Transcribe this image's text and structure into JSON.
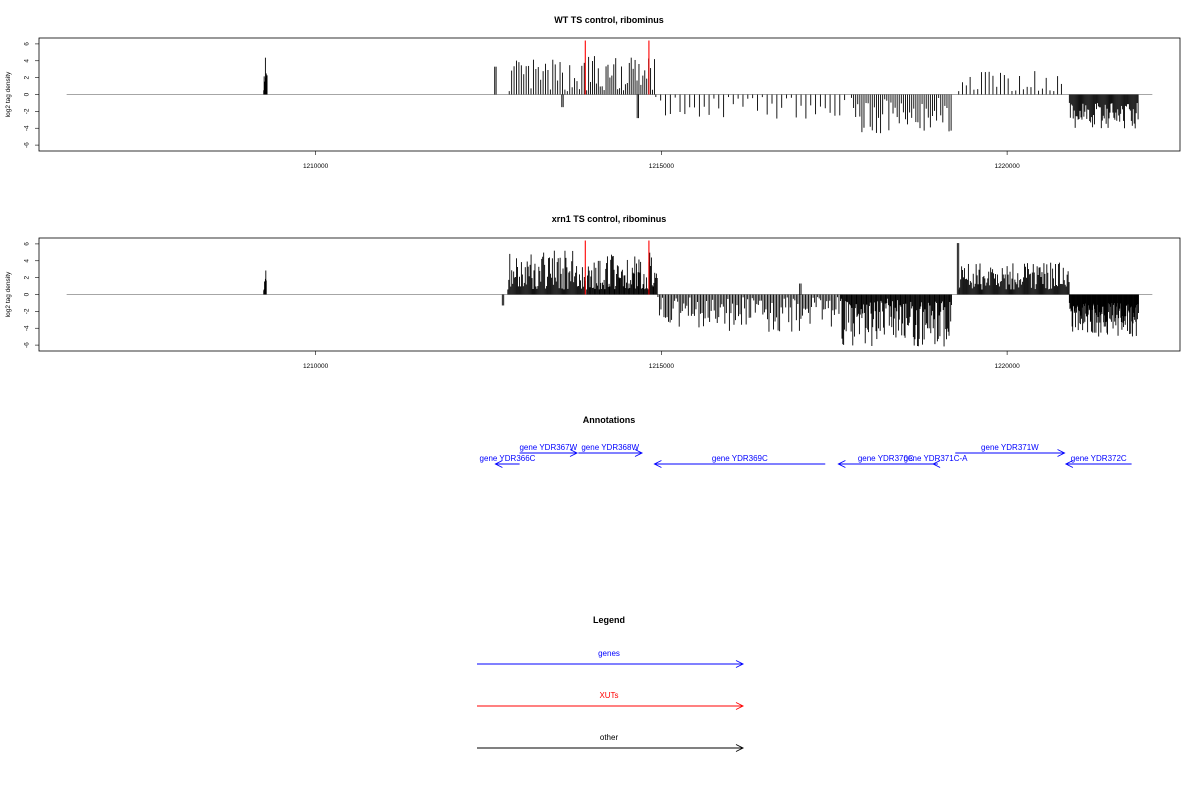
{
  "chart_data": [
    {
      "type": "bar",
      "title": "WT TS control, ribominus",
      "xlabel": "",
      "ylabel": "log2 tag density",
      "xlim": [
        1206000,
        1222500
      ],
      "ylim": [
        -6.7,
        6.7
      ],
      "x_ticks": [
        1210000,
        1215000,
        1220000
      ],
      "x_tick_labels": [
        "1210000",
        "1215000",
        "1220000"
      ],
      "y_ticks": [
        -6,
        -4,
        -2,
        0,
        2,
        4,
        6
      ],
      "baseline_range": [
        1206400,
        1222100
      ],
      "highlight_x": [
        1213900,
        1214820
      ],
      "highlight_color": "#ff0000",
      "bar_color": "#000000",
      "series": [
        {
          "start": 1209250,
          "end": 1209300,
          "step": 6,
          "sign": 1,
          "min": 0.5,
          "max": 5.2,
          "seed": 11
        },
        {
          "start": 1212590,
          "end": 1212610,
          "step": 20,
          "sign": 1,
          "min": 3.3,
          "max": 3.3,
          "seed": 12
        },
        {
          "start": 1212800,
          "end": 1213900,
          "step": 35,
          "sign": 1,
          "min": 0.4,
          "max": 4.2,
          "seed": 13
        },
        {
          "start": 1213560,
          "end": 1213580,
          "step": 20,
          "sign": -1,
          "min": 1.5,
          "max": 1.5,
          "seed": 14
        },
        {
          "start": 1213920,
          "end": 1214900,
          "step": 28,
          "sign": 1,
          "min": 0.5,
          "max": 4.6,
          "seed": 15
        },
        {
          "start": 1214650,
          "end": 1214670,
          "step": 20,
          "sign": -1,
          "min": 2.8,
          "max": 2.8,
          "seed": 16
        },
        {
          "start": 1214920,
          "end": 1217700,
          "step": 70,
          "sign": -1,
          "min": 0.3,
          "max": 3.0,
          "seed": 17
        },
        {
          "start": 1217750,
          "end": 1219200,
          "step": 30,
          "sign": -1,
          "min": 0.4,
          "max": 4.8,
          "seed": 18
        },
        {
          "start": 1219300,
          "end": 1220800,
          "step": 55,
          "sign": 1,
          "min": 0.4,
          "max": 3.0,
          "seed": 19
        },
        {
          "start": 1220900,
          "end": 1221900,
          "step": 14,
          "sign": -1,
          "min": 1.0,
          "max": 4.2,
          "seed": 20
        }
      ]
    },
    {
      "type": "bar",
      "title": "xrn1 TS control, ribominus",
      "xlabel": "",
      "ylabel": "log2 tag density",
      "xlim": [
        1206000,
        1222500
      ],
      "ylim": [
        -6.7,
        6.7
      ],
      "x_ticks": [
        1210000,
        1215000,
        1220000
      ],
      "x_tick_labels": [
        "1210000",
        "1215000",
        "1220000"
      ],
      "y_ticks": [
        -6,
        -4,
        -2,
        0,
        2,
        4,
        6
      ],
      "baseline_range": [
        1206400,
        1222100
      ],
      "highlight_x": [
        1213900,
        1214820
      ],
      "highlight_color": "#ff0000",
      "bar_color": "#000000",
      "series": [
        {
          "start": 1209250,
          "end": 1209290,
          "step": 6,
          "sign": 1,
          "min": 0.5,
          "max": 3.7,
          "seed": 31
        },
        {
          "start": 1212700,
          "end": 1212720,
          "step": 20,
          "sign": -1,
          "min": 1.3,
          "max": 1.3,
          "seed": 32
        },
        {
          "start": 1212780,
          "end": 1213900,
          "step": 14,
          "sign": 1,
          "min": 0.6,
          "max": 5.2,
          "seed": 33
        },
        {
          "start": 1213920,
          "end": 1214950,
          "step": 12,
          "sign": 1,
          "min": 0.6,
          "max": 5.0,
          "seed": 34
        },
        {
          "start": 1214950,
          "end": 1217600,
          "step": 22,
          "sign": -1,
          "min": 0.3,
          "max": 4.5,
          "seed": 35
        },
        {
          "start": 1217000,
          "end": 1217020,
          "step": 20,
          "sign": 1,
          "min": 1.3,
          "max": 1.3,
          "seed": 36
        },
        {
          "start": 1217600,
          "end": 1219200,
          "step": 12,
          "sign": -1,
          "min": 0.5,
          "max": 6.2,
          "seed": 37
        },
        {
          "start": 1219280,
          "end": 1219300,
          "step": 20,
          "sign": 1,
          "min": 6.1,
          "max": 6.1,
          "seed": 38
        },
        {
          "start": 1219300,
          "end": 1220900,
          "step": 14,
          "sign": 1,
          "min": 0.6,
          "max": 3.8,
          "seed": 39
        },
        {
          "start": 1220900,
          "end": 1221900,
          "step": 8,
          "sign": -1,
          "min": 1.0,
          "max": 5.0,
          "seed": 40
        }
      ]
    },
    {
      "type": "annotation",
      "title": "Annotations",
      "xlim": [
        1206000,
        1222500
      ],
      "color": "#0000ff",
      "genes": [
        {
          "label": "gene YDR367W",
          "start": 1212950,
          "end": 1213780,
          "strand": "+",
          "row": 0
        },
        {
          "label": "gene YDR366C",
          "start": 1212600,
          "end": 1212950,
          "strand": "-",
          "row": 1
        },
        {
          "label": "gene YDR368W",
          "start": 1213800,
          "end": 1214720,
          "strand": "+",
          "row": 0
        },
        {
          "label": "gene YDR369C",
          "start": 1214900,
          "end": 1217370,
          "strand": "-",
          "row": 1
        },
        {
          "label": "gene YDR370C",
          "start": 1217560,
          "end": 1218930,
          "strand": "-",
          "row": 1
        },
        {
          "label": "gene YDR371W",
          "start": 1219250,
          "end": 1220830,
          "strand": "+",
          "row": 0
        },
        {
          "label": "gene YDR371C-A",
          "start": 1218930,
          "end": 1219000,
          "strand": "-",
          "row": 1
        },
        {
          "label": "gene YDR372C",
          "start": 1220850,
          "end": 1221800,
          "strand": "-",
          "row": 1
        }
      ]
    }
  ],
  "legend": {
    "title": "Legend",
    "items": [
      {
        "label": "genes",
        "color": "#0000ff"
      },
      {
        "label": "XUTs",
        "color": "#ff0000"
      },
      {
        "label": "other",
        "color": "#000000"
      }
    ]
  }
}
